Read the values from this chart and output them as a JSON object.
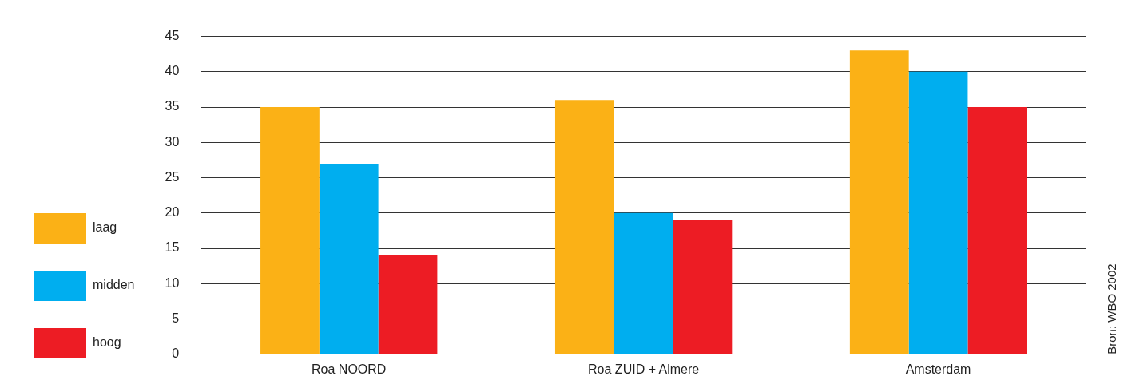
{
  "chart_data": {
    "type": "bar",
    "categories": [
      "Roa NOORD",
      "Roa ZUID + Almere",
      "Amsterdam"
    ],
    "series": [
      {
        "name": "laag",
        "color": "#fbb116",
        "values": [
          35,
          36,
          43
        ]
      },
      {
        "name": "midden",
        "color": "#00aeef",
        "values": [
          27,
          20,
          40
        ]
      },
      {
        "name": "hoog",
        "color": "#ed1c24",
        "values": [
          14,
          19,
          35
        ]
      }
    ],
    "ylim": [
      0,
      45
    ],
    "yticks": [
      0,
      5,
      10,
      15,
      20,
      25,
      30,
      35,
      40,
      45
    ],
    "grid": "y",
    "legend": "left",
    "annotations": [
      "Bron: WBO 2002"
    ]
  }
}
